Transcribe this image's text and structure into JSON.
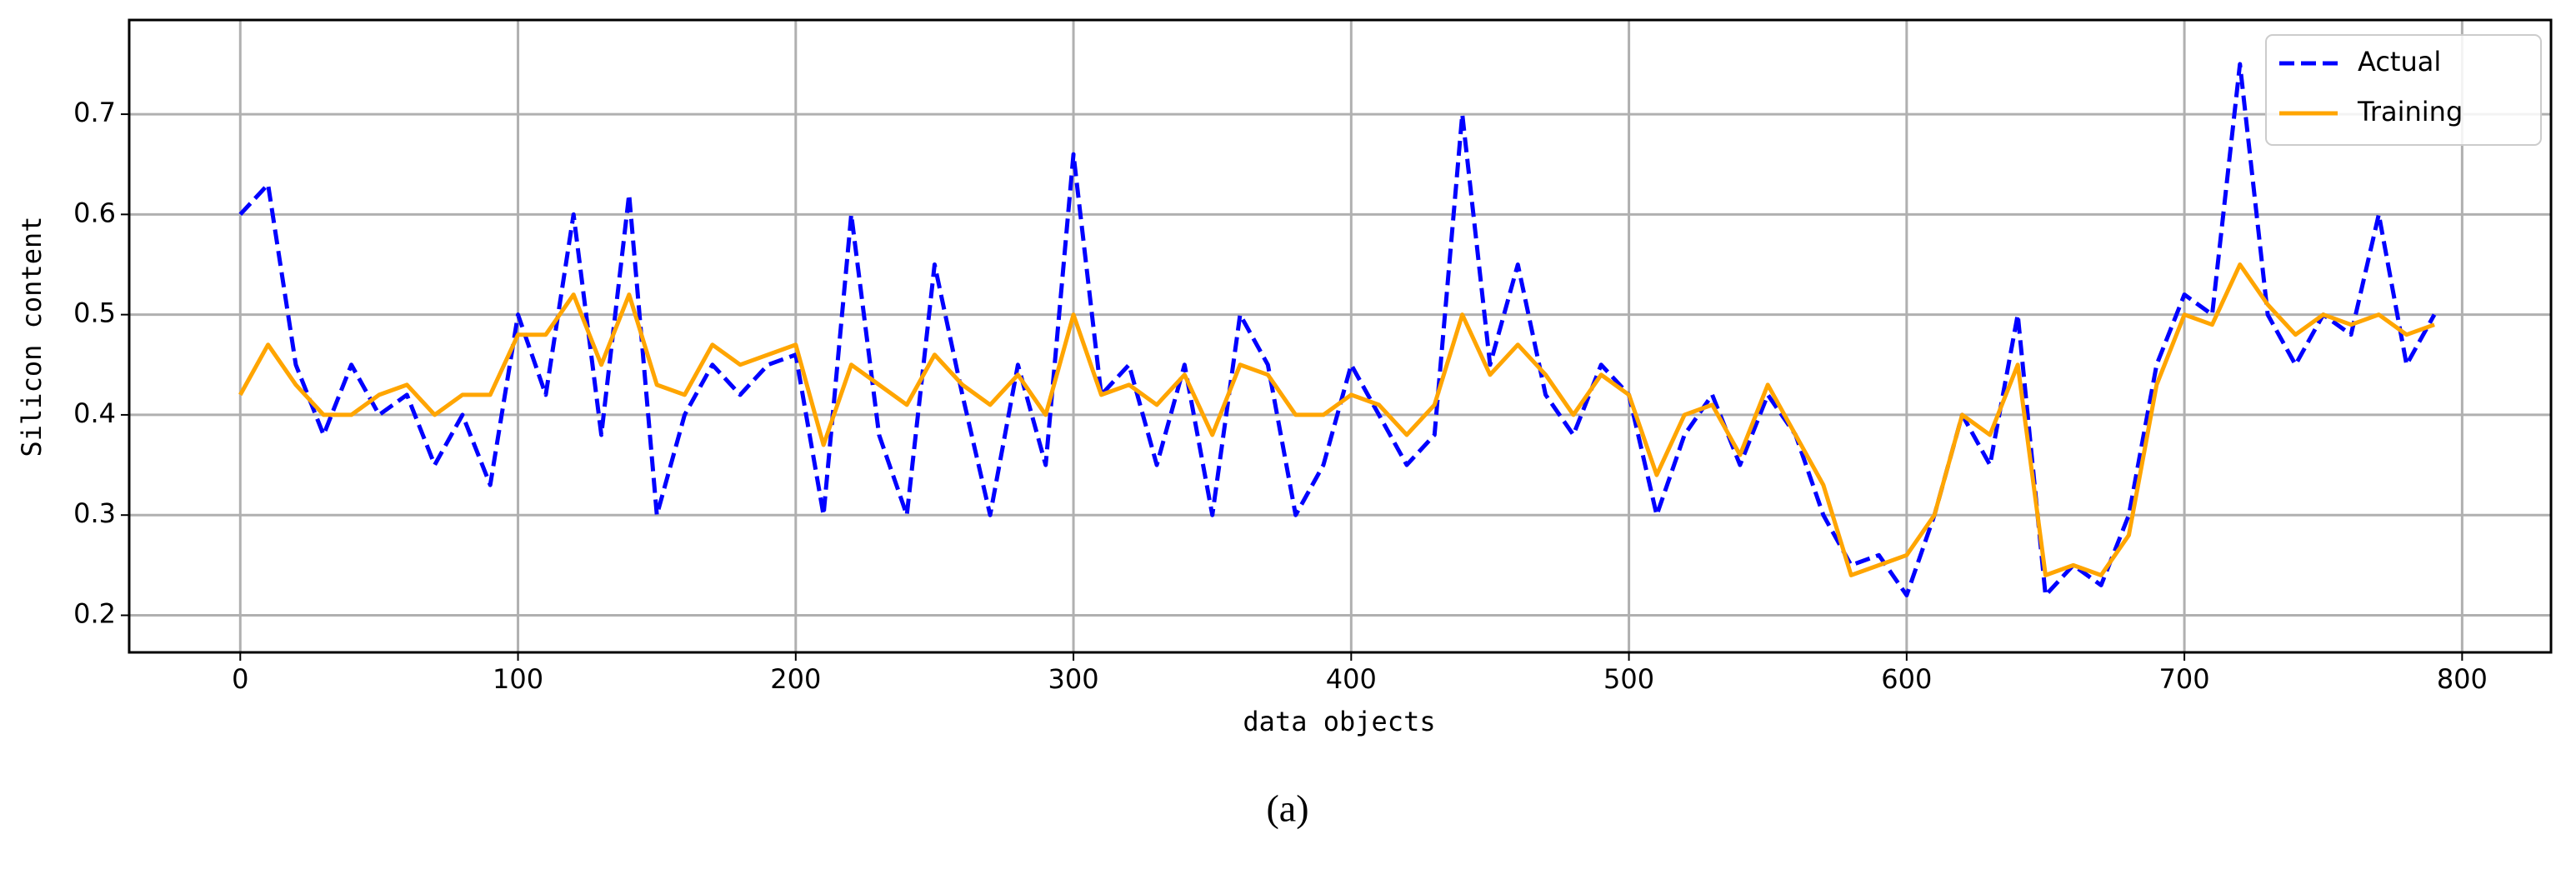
{
  "chart_data": {
    "type": "line",
    "xlabel": "data objects",
    "ylabel": "Silicon content",
    "caption": "(a)",
    "x": [
      0,
      10,
      20,
      30,
      40,
      50,
      60,
      70,
      80,
      90,
      100,
      110,
      120,
      130,
      140,
      150,
      160,
      170,
      180,
      190,
      200,
      210,
      220,
      230,
      240,
      250,
      260,
      270,
      280,
      290,
      300,
      310,
      320,
      330,
      340,
      350,
      360,
      370,
      380,
      390,
      400,
      410,
      420,
      430,
      440,
      450,
      460,
      470,
      480,
      490,
      500,
      510,
      520,
      530,
      540,
      550,
      560,
      570,
      580,
      590,
      600,
      610,
      620,
      630,
      640,
      650,
      660,
      670,
      680,
      690,
      700,
      710,
      720,
      730,
      740,
      750,
      760,
      770,
      780,
      790
    ],
    "series": [
      {
        "name": "Actual",
        "color": "#0000ff",
        "linestyle": "dashed",
        "values": [
          0.6,
          0.63,
          0.45,
          0.38,
          0.45,
          0.4,
          0.42,
          0.35,
          0.4,
          0.33,
          0.5,
          0.42,
          0.6,
          0.38,
          0.62,
          0.3,
          0.4,
          0.45,
          0.42,
          0.45,
          0.46,
          0.3,
          0.6,
          0.38,
          0.3,
          0.55,
          0.42,
          0.3,
          0.45,
          0.35,
          0.66,
          0.42,
          0.45,
          0.35,
          0.45,
          0.3,
          0.5,
          0.45,
          0.3,
          0.35,
          0.45,
          0.4,
          0.35,
          0.38,
          0.7,
          0.45,
          0.55,
          0.42,
          0.38,
          0.45,
          0.42,
          0.3,
          0.38,
          0.42,
          0.35,
          0.42,
          0.38,
          0.3,
          0.25,
          0.26,
          0.22,
          0.3,
          0.4,
          0.35,
          0.5,
          0.22,
          0.25,
          0.23,
          0.3,
          0.45,
          0.52,
          0.5,
          0.75,
          0.5,
          0.45,
          0.5,
          0.48,
          0.6,
          0.45,
          0.5
        ]
      },
      {
        "name": "Training",
        "color": "#ffa500",
        "linestyle": "solid",
        "values": [
          0.42,
          0.47,
          0.43,
          0.4,
          0.4,
          0.42,
          0.43,
          0.4,
          0.42,
          0.42,
          0.48,
          0.48,
          0.52,
          0.45,
          0.52,
          0.43,
          0.42,
          0.47,
          0.45,
          0.46,
          0.47,
          0.37,
          0.45,
          0.43,
          0.41,
          0.46,
          0.43,
          0.41,
          0.44,
          0.4,
          0.5,
          0.42,
          0.43,
          0.41,
          0.44,
          0.38,
          0.45,
          0.44,
          0.4,
          0.4,
          0.42,
          0.41,
          0.38,
          0.41,
          0.5,
          0.44,
          0.47,
          0.44,
          0.4,
          0.44,
          0.42,
          0.34,
          0.4,
          0.41,
          0.36,
          0.43,
          0.38,
          0.33,
          0.24,
          0.25,
          0.26,
          0.3,
          0.4,
          0.38,
          0.45,
          0.24,
          0.25,
          0.24,
          0.28,
          0.43,
          0.5,
          0.49,
          0.55,
          0.51,
          0.48,
          0.5,
          0.49,
          0.5,
          0.48,
          0.49
        ]
      }
    ],
    "xlim": [
      -40,
      832
    ],
    "ylim": [
      0.163,
      0.794
    ],
    "xticks": [
      0,
      100,
      200,
      300,
      400,
      500,
      600,
      700,
      800
    ],
    "yticks": [
      0.2,
      0.3,
      0.4,
      0.5,
      0.6,
      0.7
    ],
    "grid": true,
    "legend": "upper right"
  }
}
